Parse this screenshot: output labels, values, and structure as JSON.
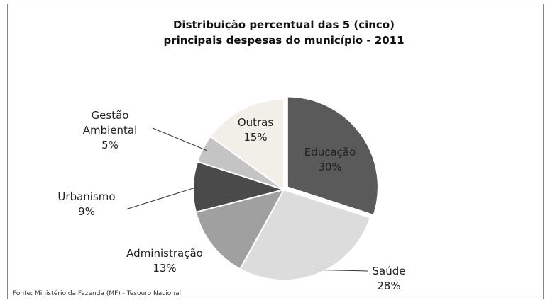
{
  "chart_data": {
    "type": "pie",
    "title": "Distribuição percentual das 5 (cinco) principais despesas do município - 2011",
    "categories": [
      "Educação",
      "Saúde",
      "Administração",
      "Urbanismo",
      "Gestão Ambiental",
      "Outras"
    ],
    "values": [
      30,
      28,
      13,
      9,
      5,
      15
    ],
    "value_labels": [
      "30%",
      "28%",
      "13%",
      "9%",
      "5%",
      "15%"
    ],
    "colors": [
      "#5a5a5a",
      "#dcdcdc",
      "#a0a0a0",
      "#4a4a4a",
      "#c4c4c4",
      "#f2efe8"
    ],
    "source": "Fonte: Ministério da Fazenda (MF) - Tesouro Nacional"
  }
}
